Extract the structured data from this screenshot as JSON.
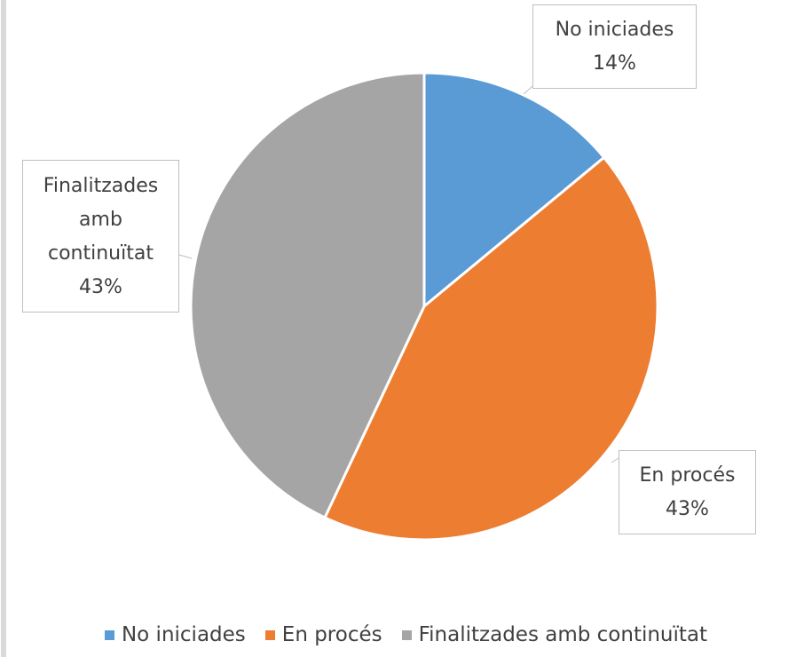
{
  "chart_data": {
    "type": "pie",
    "categories": [
      "No iniciades",
      "En procés",
      "Finalitzades amb continuïtat"
    ],
    "values": [
      14,
      43,
      43
    ],
    "value_labels": [
      "14%",
      "43%",
      "43%"
    ],
    "colors": [
      "#5b9bd5",
      "#ed7d31",
      "#a5a5a5"
    ],
    "legend": "bottom"
  }
}
